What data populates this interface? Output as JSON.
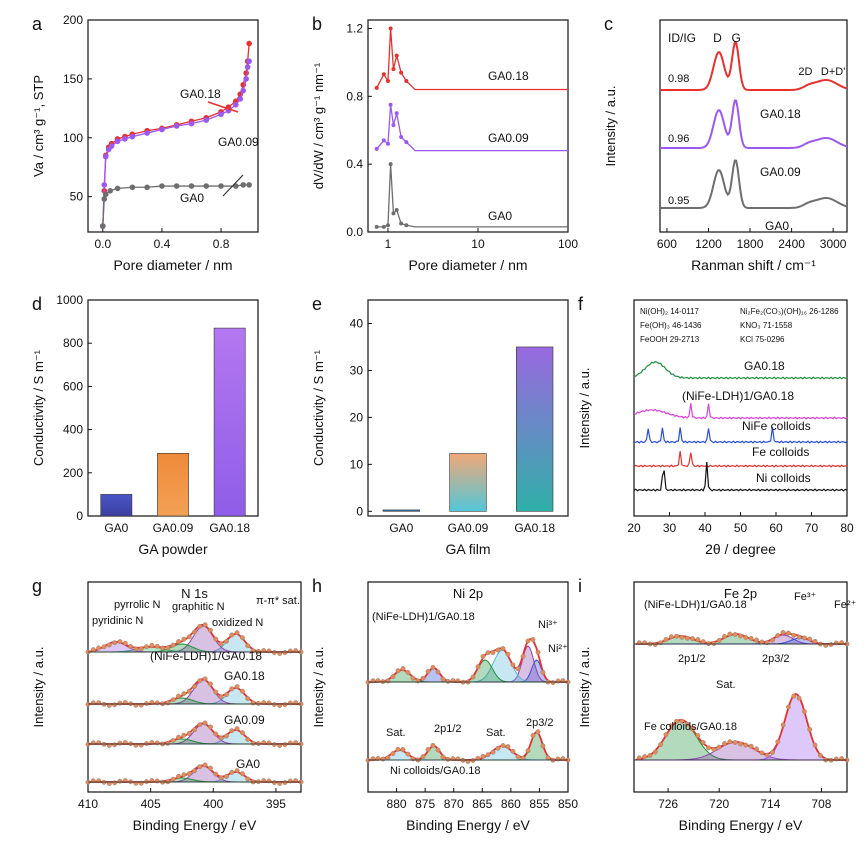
{
  "colors": {
    "red": "#e8312f",
    "purple": "#9b59f0",
    "grey": "#6e6e6e",
    "green": "#1f8f3a",
    "blue": "#2a4be0",
    "black": "#111111",
    "cyan": "#57b7d8",
    "orange": "#f07a35"
  },
  "panels": {
    "a": {
      "letter": "a",
      "ylabel": "Va / cm³ g⁻¹, STP",
      "xlabel": "Pore diameter / nm",
      "ann": [
        "GA0.18",
        "GA0.09",
        "GA0"
      ]
    },
    "b": {
      "letter": "b",
      "ylabel": "dV/dW / cm³ g⁻¹ nm⁻¹",
      "xlabel": "Pore diameter / nm",
      "ann": [
        "GA0.18",
        "GA0.09",
        "GA0"
      ]
    },
    "c": {
      "letter": "c",
      "ylabel": "Intensity / a.u.",
      "xlabel": "Ranman shift / cm⁻¹",
      "ratio_label": "ID/IG",
      "peaks": [
        "D",
        "G",
        "2D",
        "D+D'"
      ],
      "ratios": [
        "0.98",
        "0.96",
        "0.95"
      ],
      "ann": [
        "GA0.18",
        "GA0.09",
        "GA0"
      ]
    },
    "d": {
      "letter": "d",
      "ylabel": "Conductivity / S m⁻¹",
      "xlabel": "GA powder"
    },
    "e": {
      "letter": "e",
      "ylabel": "Conductivity / S m⁻¹",
      "xlabel": "GA film"
    },
    "f": {
      "letter": "f",
      "ylabel": "Intensity / a.u.",
      "xlabel": "2θ / degree",
      "legend": [
        "Ni(OH)₂ 14-0117",
        "Fe(OH)₃ 46-1436",
        "FeOOH 29-2713",
        "Ni₂Fe₂(CO₃)(OH)₁₆ 26-1286",
        "KNO₃ 71-1558",
        "KCl 75-0296"
      ],
      "ann": [
        "GA0.18",
        "(NiFe-LDH)1/GA0.18",
        "NiFe colloids",
        "Fe colloids",
        "Ni colloids"
      ]
    },
    "g": {
      "letter": "g",
      "ylabel": "Intensity / a.u.",
      "xlabel": "Binding Energy / eV",
      "title": "N 1s",
      "ann": [
        "pyridinic N",
        "pyrrolic N",
        "graphitic N",
        "oxidized N",
        "π-π* sat.",
        "(NiFe-LDH)1/GA0.18",
        "GA0.18",
        "GA0.09",
        "GA0"
      ]
    },
    "h": {
      "letter": "h",
      "ylabel": "Intensity / a.u.",
      "xlabel": "Binding Energy / eV",
      "title": "Ni 2p",
      "ann": [
        "(NiFe-LDH)1/GA0.18",
        "Ni³⁺",
        "Ni²⁺",
        "Sat.",
        "2p1/2",
        "Sat.",
        "2p3/2",
        "Ni colloids/GA0.18"
      ]
    },
    "i": {
      "letter": "i",
      "ylabel": "Intensity / a.u.",
      "xlabel": "Binding Energy / eV",
      "title": "Fe 2p",
      "ann": [
        "(NiFe-LDH)1/GA0.18",
        "Fe³⁺",
        "Fe²⁺",
        "2p1/2",
        "2p3/2",
        "Sat.",
        "Fe colloids/GA0.18"
      ]
    }
  },
  "chart_data": [
    {
      "panel": "a",
      "type": "line",
      "xlabel": "Pore diameter / nm",
      "ylabel": "Va / cm³ g⁻¹, STP",
      "xlim": [
        -0.1,
        1.05
      ],
      "ylim": [
        20,
        200
      ],
      "xticks": [
        0.0,
        0.4,
        0.8
      ],
      "yticks": [
        50,
        100,
        150,
        200
      ],
      "series": [
        {
          "name": "GA0.18",
          "color": "red",
          "x": [
            0,
            0.01,
            0.02,
            0.04,
            0.06,
            0.1,
            0.15,
            0.2,
            0.3,
            0.4,
            0.5,
            0.6,
            0.7,
            0.8,
            0.85,
            0.9,
            0.93,
            0.95,
            0.97,
            0.98,
            0.99
          ],
          "y": [
            25,
            55,
            85,
            92,
            95,
            99,
            101,
            103,
            106,
            108,
            111,
            114,
            117,
            122,
            126,
            131,
            137,
            145,
            155,
            165,
            180
          ]
        },
        {
          "name": "GA0.09",
          "color": "purple",
          "x": [
            0,
            0.01,
            0.02,
            0.04,
            0.06,
            0.1,
            0.15,
            0.2,
            0.3,
            0.4,
            0.5,
            0.6,
            0.7,
            0.8,
            0.85,
            0.9,
            0.93,
            0.95,
            0.97,
            0.98,
            0.99
          ],
          "y": [
            25,
            60,
            84,
            90,
            93,
            97,
            99,
            101,
            104,
            107,
            110,
            112,
            115,
            120,
            123,
            128,
            133,
            140,
            150,
            160,
            165
          ]
        },
        {
          "name": "GA0",
          "color": "grey",
          "x": [
            0,
            0.01,
            0.02,
            0.05,
            0.1,
            0.2,
            0.3,
            0.4,
            0.5,
            0.6,
            0.7,
            0.8,
            0.9,
            0.95,
            0.99
          ],
          "y": [
            25,
            48,
            52,
            55,
            57,
            58,
            58,
            59,
            59,
            59,
            59,
            59,
            59,
            60,
            60
          ]
        }
      ]
    },
    {
      "panel": "b",
      "type": "line",
      "xscale": "log",
      "xlabel": "Pore diameter / nm",
      "ylabel": "dV/dW / cm³ g⁻¹ nm⁻¹",
      "xlim": [
        0.6,
        100
      ],
      "ylim": [
        0,
        1.25
      ],
      "xticks": [
        1,
        10,
        100
      ],
      "yticks": [
        0.0,
        0.4,
        0.8,
        1.2
      ],
      "series": [
        {
          "name": "GA0.18",
          "color": "red",
          "offset": 0.84,
          "x": [
            0.75,
            0.9,
            1.0,
            1.07,
            1.15,
            1.25,
            1.4,
            1.6,
            2,
            3,
            10,
            100
          ],
          "y": [
            0.01,
            0.09,
            0.05,
            0.36,
            0.12,
            0.2,
            0.1,
            0.05,
            0.0,
            0,
            0,
            0
          ]
        },
        {
          "name": "GA0.09",
          "color": "purple",
          "offset": 0.48,
          "x": [
            0.75,
            0.9,
            1.0,
            1.07,
            1.15,
            1.25,
            1.4,
            1.6,
            2,
            3,
            10,
            100
          ],
          "y": [
            0.01,
            0.06,
            0.04,
            0.27,
            0.15,
            0.22,
            0.08,
            0.05,
            0.0,
            0,
            0,
            0
          ]
        },
        {
          "name": "GA0",
          "color": "grey",
          "offset": 0.03,
          "x": [
            0.75,
            0.9,
            1.0,
            1.07,
            1.15,
            1.25,
            1.4,
            1.6,
            2,
            3,
            10,
            100
          ],
          "y": [
            0,
            0,
            0.01,
            0.37,
            0.08,
            0.1,
            0.02,
            0.01,
            0,
            0,
            0,
            0
          ]
        }
      ]
    },
    {
      "panel": "c",
      "type": "line",
      "xlabel": "Ranman shift / cm⁻¹",
      "ylabel": "Intensity / a.u.",
      "xlim": [
        500,
        3200
      ],
      "xticks": [
        600,
        1200,
        1800,
        2400,
        3000
      ],
      "series": [
        {
          "name": "GA0.18",
          "color": "red",
          "offset": 2.0
        },
        {
          "name": "GA0.09",
          "color": "purple",
          "offset": 1.0
        },
        {
          "name": "GA0",
          "color": "grey",
          "offset": 0.0
        }
      ]
    },
    {
      "panel": "d",
      "type": "bar",
      "categories": [
        "GA0",
        "GA0.09",
        "GA0.18"
      ],
      "values": [
        100,
        290,
        870
      ],
      "xlabel": "GA powder",
      "ylabel": "Conductivity / S m⁻¹",
      "ylim": [
        0,
        1000
      ],
      "yticks": [
        0,
        200,
        400,
        600,
        800,
        1000
      ]
    },
    {
      "panel": "e",
      "type": "bar",
      "categories": [
        "GA0",
        "GA0.09",
        "GA0.18"
      ],
      "values": [
        0.3,
        12.3,
        35
      ],
      "xlabel": "GA film",
      "ylabel": "Conductivity / S m⁻¹",
      "ylim": [
        -1,
        45
      ],
      "yticks": [
        0,
        10,
        20,
        30,
        40
      ]
    },
    {
      "panel": "f",
      "type": "line",
      "xlabel": "2θ / degree",
      "ylabel": "Intensity / a.u.",
      "xlim": [
        20,
        80
      ],
      "xticks": [
        20,
        30,
        40,
        50,
        60,
        70,
        80
      ],
      "series": [
        {
          "name": "GA0.18",
          "color": "green"
        },
        {
          "name": "(NiFe-LDH)1/GA0.18",
          "color": "#e040e0"
        },
        {
          "name": "NiFe colloids",
          "color": "blue"
        },
        {
          "name": "Fe colloids",
          "color": "red"
        },
        {
          "name": "Ni colloids",
          "color": "black"
        }
      ]
    },
    {
      "panel": "g",
      "type": "line",
      "xlabel": "Binding Energy / eV",
      "ylabel": "Intensity / a.u.",
      "xlim": [
        410,
        393
      ],
      "xticks": [
        395,
        400,
        405,
        410
      ]
    },
    {
      "panel": "h",
      "type": "line",
      "xlabel": "Binding Energy / eV",
      "ylabel": "Intensity / a.u.",
      "xlim": [
        885,
        850
      ],
      "xticks": [
        850,
        855,
        860,
        865,
        870,
        875,
        880
      ]
    },
    {
      "panel": "i",
      "type": "line",
      "xlabel": "Binding Energy / eV",
      "ylabel": "Intensity / a.u.",
      "xlim": [
        730,
        705
      ],
      "xticks": [
        708,
        714,
        720,
        726
      ]
    }
  ]
}
